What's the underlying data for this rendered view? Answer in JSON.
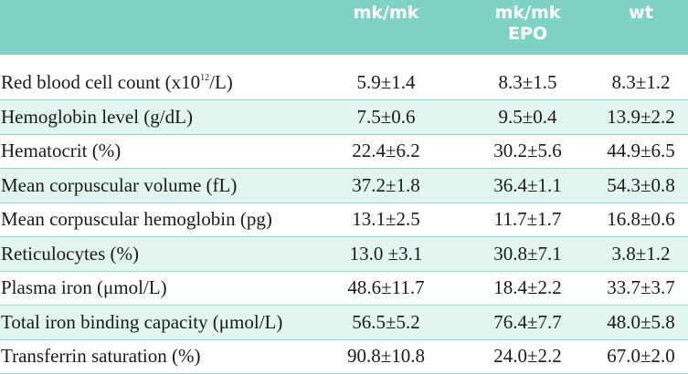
{
  "table": {
    "header": [
      [],
      [
        "mk/mk"
      ],
      [
        "mk/mk",
        "EPO"
      ],
      [
        "wt"
      ]
    ],
    "rows": [
      [
        [
          {
            "text": "Red blood cell count (x10"
          },
          {
            "text": "12",
            "sup": true
          },
          {
            "text": "/L)"
          }
        ],
        "5.9±1.4",
        "8.3±1.5",
        "8.3±1.2"
      ],
      [
        [
          {
            "text": "Hemoglobin level (g/dL)"
          }
        ],
        "7.5±0.6",
        "9.5±0.4",
        "13.9±2.2"
      ],
      [
        [
          {
            "text": "Hematocrit (%)"
          }
        ],
        "22.4±6.2",
        "30.2±5.6",
        "44.9±6.5"
      ],
      [
        [
          {
            "text": "Mean corpuscular volume (fL)"
          }
        ],
        "37.2±1.8",
        "36.4±1.1",
        "54.3±0.8"
      ],
      [
        [
          {
            "text": "Mean corpuscular hemoglobin (pg)"
          }
        ],
        "13.1±2.5",
        "11.7±1.7",
        "16.8±0.6"
      ],
      [
        [
          {
            "text": "Reticulocytes (%)"
          }
        ],
        "13.0 ±3.1",
        "30.8±7.1",
        "3.8±1.2"
      ],
      [
        [
          {
            "text": "Plasma iron (μmol/L)"
          }
        ],
        "48.6±11.7",
        "18.4±2.2",
        "33.7±3.7"
      ],
      [
        [
          {
            "text": "Total iron binding capacity (μmol/L)"
          }
        ],
        "56.5±5.2",
        "76.4±7.7",
        "48.0±5.8"
      ],
      [
        [
          {
            "text": "Transferrin saturation (%)"
          }
        ],
        "90.8±10.8",
        "24.0±2.2",
        "67.0±2.0"
      ]
    ]
  }
}
